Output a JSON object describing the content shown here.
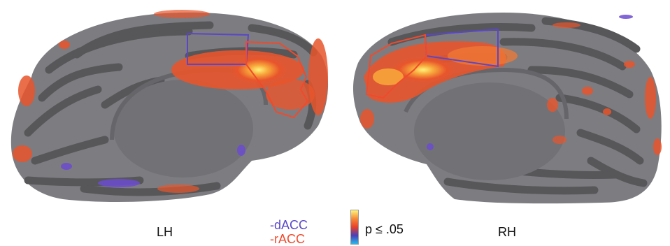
{
  "labels": {
    "left_hemisphere": "LH",
    "right_hemisphere": "RH",
    "dacc": "-dACC",
    "racc": "-rACC",
    "threshold": "p ≤ .05"
  },
  "colors": {
    "surface_light": "#7d7c80",
    "surface_dark": "#575659",
    "medial_wall": "#727176",
    "dacc_outline": "#5a47c8",
    "racc_outline": "#f04a2c",
    "activation_low": "#e84b2c",
    "activation_mid": "#f58a38",
    "activation_high": "#fff27a",
    "deactivation": "#6b4bd0",
    "colorbar": [
      "#fff27a",
      "#f58a38",
      "#e8412b",
      "#4a3fb8",
      "#2ab8e8"
    ]
  }
}
